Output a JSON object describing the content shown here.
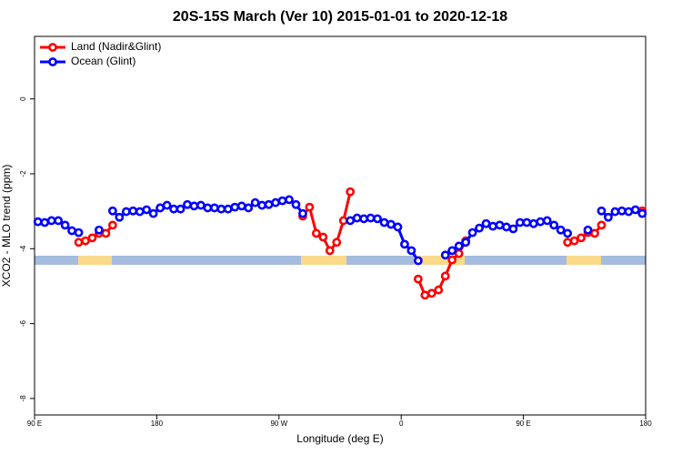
{
  "chart_data": {
    "type": "line",
    "title": "20S-15S March (Ver 10)   2015-01-01 to 2020-12-18",
    "x_label": "Longitude (deg E)",
    "y_label": "XCO2 - MLO trend (ppm)",
    "x": [
      92.5,
      97.5,
      102.5,
      107.5,
      112.5,
      117.5,
      122.5,
      127.5,
      132.5,
      137.5,
      142.5,
      147.5,
      152.5,
      157.5,
      162.5,
      167.5,
      172.5,
      177.5,
      182.5,
      187.5,
      192.5,
      197.5,
      202.5,
      207.5,
      212.5,
      217.5,
      222.5,
      227.5,
      232.5,
      237.5,
      242.5,
      247.5,
      252.5,
      257.5,
      262.5,
      267.5,
      272.5,
      277.5,
      282.5,
      287.5,
      292.5,
      297.5,
      302.5,
      307.5,
      312.5,
      317.5,
      322.5,
      327.5,
      332.5,
      337.5,
      342.5,
      347.5,
      352.5,
      357.5,
      362.5,
      367.5,
      372.5,
      377.5,
      382.5,
      387.5,
      392.5,
      397.5,
      402.5,
      407.5,
      412.5,
      417.5,
      422.5,
      427.5,
      432.5,
      437.5,
      442.5,
      447.5,
      452.5,
      457.5,
      462.5,
      467.5,
      472.5,
      477.5,
      482.5,
      487.5,
      492.5,
      497.5,
      502.5,
      507.5,
      512.5,
      517.5,
      522.5,
      527.5,
      532.5,
      537.5
    ],
    "series": [
      {
        "name": "Land (Nadir&Glint)",
        "color": "#ff0000",
        "values": [
          null,
          null,
          null,
          null,
          null,
          null,
          -3.83,
          -3.79,
          -3.71,
          -3.59,
          -3.59,
          -3.37,
          null,
          null,
          null,
          null,
          null,
          null,
          -2.91,
          null,
          null,
          null,
          null,
          null,
          null,
          null,
          null,
          null,
          null,
          null,
          null,
          null,
          null,
          null,
          null,
          null,
          null,
          null,
          null,
          -3.13,
          -2.89,
          -3.59,
          -3.69,
          -4.05,
          -3.83,
          -3.25,
          -2.48,
          null,
          null,
          null,
          null,
          null,
          null,
          null,
          null,
          null,
          -4.81,
          -5.24,
          -5.19,
          -5.1,
          -4.73,
          -4.3,
          -4.13,
          -3.79,
          null,
          null,
          null,
          null,
          null,
          null,
          null,
          null,
          null,
          null,
          null,
          null,
          null,
          null,
          -3.83,
          -3.79,
          -3.71,
          -3.57,
          -3.59,
          -3.37,
          null,
          null,
          null,
          null,
          null,
          -2.99
        ]
      },
      {
        "name": "Ocean (Glint)",
        "color": "#0000ff",
        "values": [
          -3.28,
          -3.3,
          -3.25,
          -3.25,
          -3.37,
          -3.52,
          -3.57,
          null,
          null,
          -3.5,
          null,
          -2.99,
          -3.16,
          -3.01,
          -2.99,
          -3.01,
          -2.96,
          -3.06,
          -2.91,
          -2.84,
          -2.94,
          -2.94,
          -2.82,
          -2.86,
          -2.84,
          -2.91,
          -2.91,
          -2.94,
          -2.94,
          -2.89,
          -2.86,
          -2.91,
          -2.77,
          -2.84,
          -2.82,
          -2.77,
          -2.72,
          -2.69,
          -2.82,
          -3.06,
          null,
          null,
          null,
          null,
          null,
          null,
          -3.25,
          -3.18,
          -3.2,
          -3.18,
          -3.2,
          -3.3,
          -3.35,
          -3.42,
          -3.88,
          -4.05,
          -4.32,
          null,
          null,
          null,
          -4.17,
          -4.05,
          -3.93,
          -3.83,
          -3.57,
          -3.45,
          -3.33,
          -3.4,
          -3.37,
          -3.42,
          -3.47,
          -3.3,
          -3.3,
          -3.33,
          -3.28,
          -3.25,
          -3.37,
          -3.5,
          -3.59,
          null,
          null,
          -3.5,
          null,
          -2.99,
          -3.16,
          -3.01,
          -2.99,
          -3.01,
          -2.96,
          -3.06
        ]
      }
    ],
    "xlim": [
      90,
      540
    ],
    "xticks": [
      {
        "value": 90,
        "label": "90 E"
      },
      180,
      {
        "value": 270,
        "label": "90 W"
      },
      {
        "value": 360,
        "label": "0"
      },
      {
        "value": 450,
        "label": "90 E"
      },
      {
        "value": 540,
        "label": "180"
      }
    ],
    "ylim": [
      -8.44,
      1.67
    ],
    "yticks": [
      0,
      -2,
      -4,
      -6,
      -8
    ],
    "legend": "top-left"
  }
}
